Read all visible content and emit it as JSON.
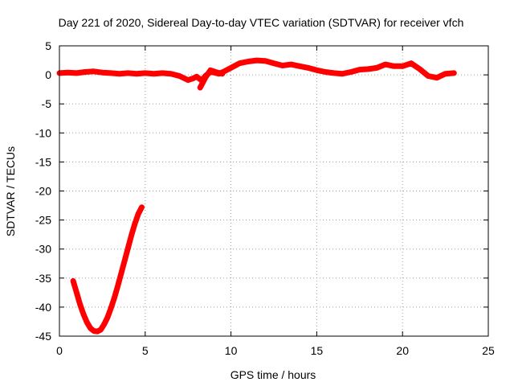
{
  "chart_data": {
    "type": "line",
    "title": "Day 221 of 2020, Sidereal Day-to-day VTEC variation (SDTVAR) for receiver vfch",
    "xlabel": "GPS time / hours",
    "ylabel": "SDTVAR / TECUs",
    "xlim": [
      0,
      25
    ],
    "ylim": [
      -45,
      5
    ],
    "xticks": [
      0,
      5,
      10,
      15,
      20,
      25
    ],
    "yticks": [
      5,
      0,
      -5,
      -10,
      -15,
      -20,
      -25,
      -30,
      -35,
      -40,
      -45
    ],
    "grid": true,
    "color": "#ff0000",
    "series": [
      {
        "name": "main",
        "x": [
          0.0,
          0.5,
          1.0,
          1.5,
          2.0,
          2.5,
          3.0,
          3.5,
          4.0,
          4.5,
          5.0,
          5.5,
          6.0,
          6.5,
          7.0,
          7.5,
          7.8,
          8.0,
          8.3,
          8.5,
          8.8,
          9.0,
          9.3,
          9.6,
          10.0,
          10.5,
          11.0,
          11.5,
          12.0,
          12.5,
          13.0,
          13.5,
          14.0,
          14.5,
          15.0,
          15.5,
          16.0,
          16.5,
          17.0,
          17.5,
          18.0,
          18.5,
          19.0,
          19.5,
          20.0,
          20.5,
          21.0,
          21.5,
          22.0,
          22.5,
          23.0
        ],
        "y": [
          0.3,
          0.4,
          0.3,
          0.5,
          0.6,
          0.4,
          0.3,
          0.2,
          0.3,
          0.2,
          0.3,
          0.2,
          0.3,
          0.2,
          -0.2,
          -0.9,
          -0.6,
          -0.3,
          -1.0,
          -0.2,
          0.5,
          0.4,
          0.2,
          0.6,
          1.2,
          2.0,
          2.3,
          2.5,
          2.4,
          2.0,
          1.6,
          1.8,
          1.5,
          1.2,
          0.8,
          0.5,
          0.3,
          0.2,
          0.5,
          0.9,
          1.0,
          1.2,
          1.8,
          1.5,
          1.5,
          2.0,
          1.0,
          -0.2,
          -0.5,
          0.2,
          0.3
        ]
      },
      {
        "name": "branch",
        "x": [
          8.2,
          8.5,
          8.8,
          9.2,
          9.5
        ],
        "y": [
          -2.2,
          -0.5,
          0.8,
          0.4,
          0.2
        ]
      },
      {
        "name": "early-dip",
        "x": [
          0.8,
          1.0,
          1.2,
          1.4,
          1.6,
          1.8,
          2.0,
          2.2,
          2.4,
          2.6,
          2.8,
          3.0,
          3.2,
          3.4,
          3.6,
          3.8,
          4.0,
          4.2,
          4.4,
          4.6,
          4.8
        ],
        "y": [
          -35.5,
          -37.5,
          -39.5,
          -41.2,
          -42.6,
          -43.6,
          -44.1,
          -44.2,
          -43.9,
          -43.0,
          -41.8,
          -40.2,
          -38.4,
          -36.4,
          -34.2,
          -32.0,
          -29.8,
          -27.6,
          -25.6,
          -23.9,
          -22.8
        ]
      }
    ]
  }
}
